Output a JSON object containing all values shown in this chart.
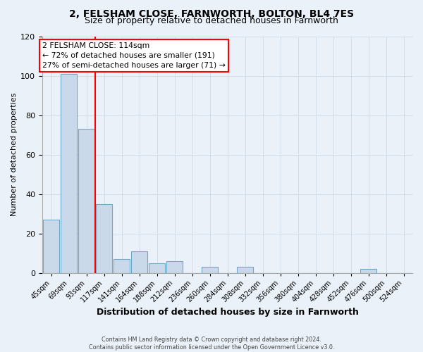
{
  "title": "2, FELSHAM CLOSE, FARNWORTH, BOLTON, BL4 7ES",
  "subtitle": "Size of property relative to detached houses in Farnworth",
  "xlabel": "Distribution of detached houses by size in Farnworth",
  "ylabel": "Number of detached properties",
  "bin_labels": [
    "45sqm",
    "69sqm",
    "93sqm",
    "117sqm",
    "141sqm",
    "164sqm",
    "188sqm",
    "212sqm",
    "236sqm",
    "260sqm",
    "284sqm",
    "308sqm",
    "332sqm",
    "356sqm",
    "380sqm",
    "404sqm",
    "428sqm",
    "452sqm",
    "476sqm",
    "500sqm",
    "524sqm"
  ],
  "bar_heights": [
    27,
    101,
    73,
    35,
    7,
    11,
    5,
    6,
    0,
    3,
    0,
    3,
    0,
    0,
    0,
    0,
    0,
    0,
    2,
    0,
    0
  ],
  "bar_color": "#c9d9ea",
  "bar_edgecolor": "#6fa8c8",
  "property_line_x": 3,
  "property_line_label": "2 FELSHAM CLOSE: 114sqm",
  "annotation_line1": "← 72% of detached houses are smaller (191)",
  "annotation_line2": "27% of semi-detached houses are larger (71) →",
  "annotation_box_color": "white",
  "annotation_box_edgecolor": "red",
  "vline_color": "red",
  "ylim": [
    0,
    120
  ],
  "yticks": [
    0,
    20,
    40,
    60,
    80,
    100,
    120
  ],
  "grid_color": "#d0dde8",
  "background_color": "#eaf1f8",
  "footer_line1": "Contains HM Land Registry data © Crown copyright and database right 2024.",
  "footer_line2": "Contains public sector information licensed under the Open Government Licence v3.0.",
  "title_fontsize": 10,
  "subtitle_fontsize": 9,
  "ylabel_fontsize": 8,
  "xlabel_fontsize": 9
}
